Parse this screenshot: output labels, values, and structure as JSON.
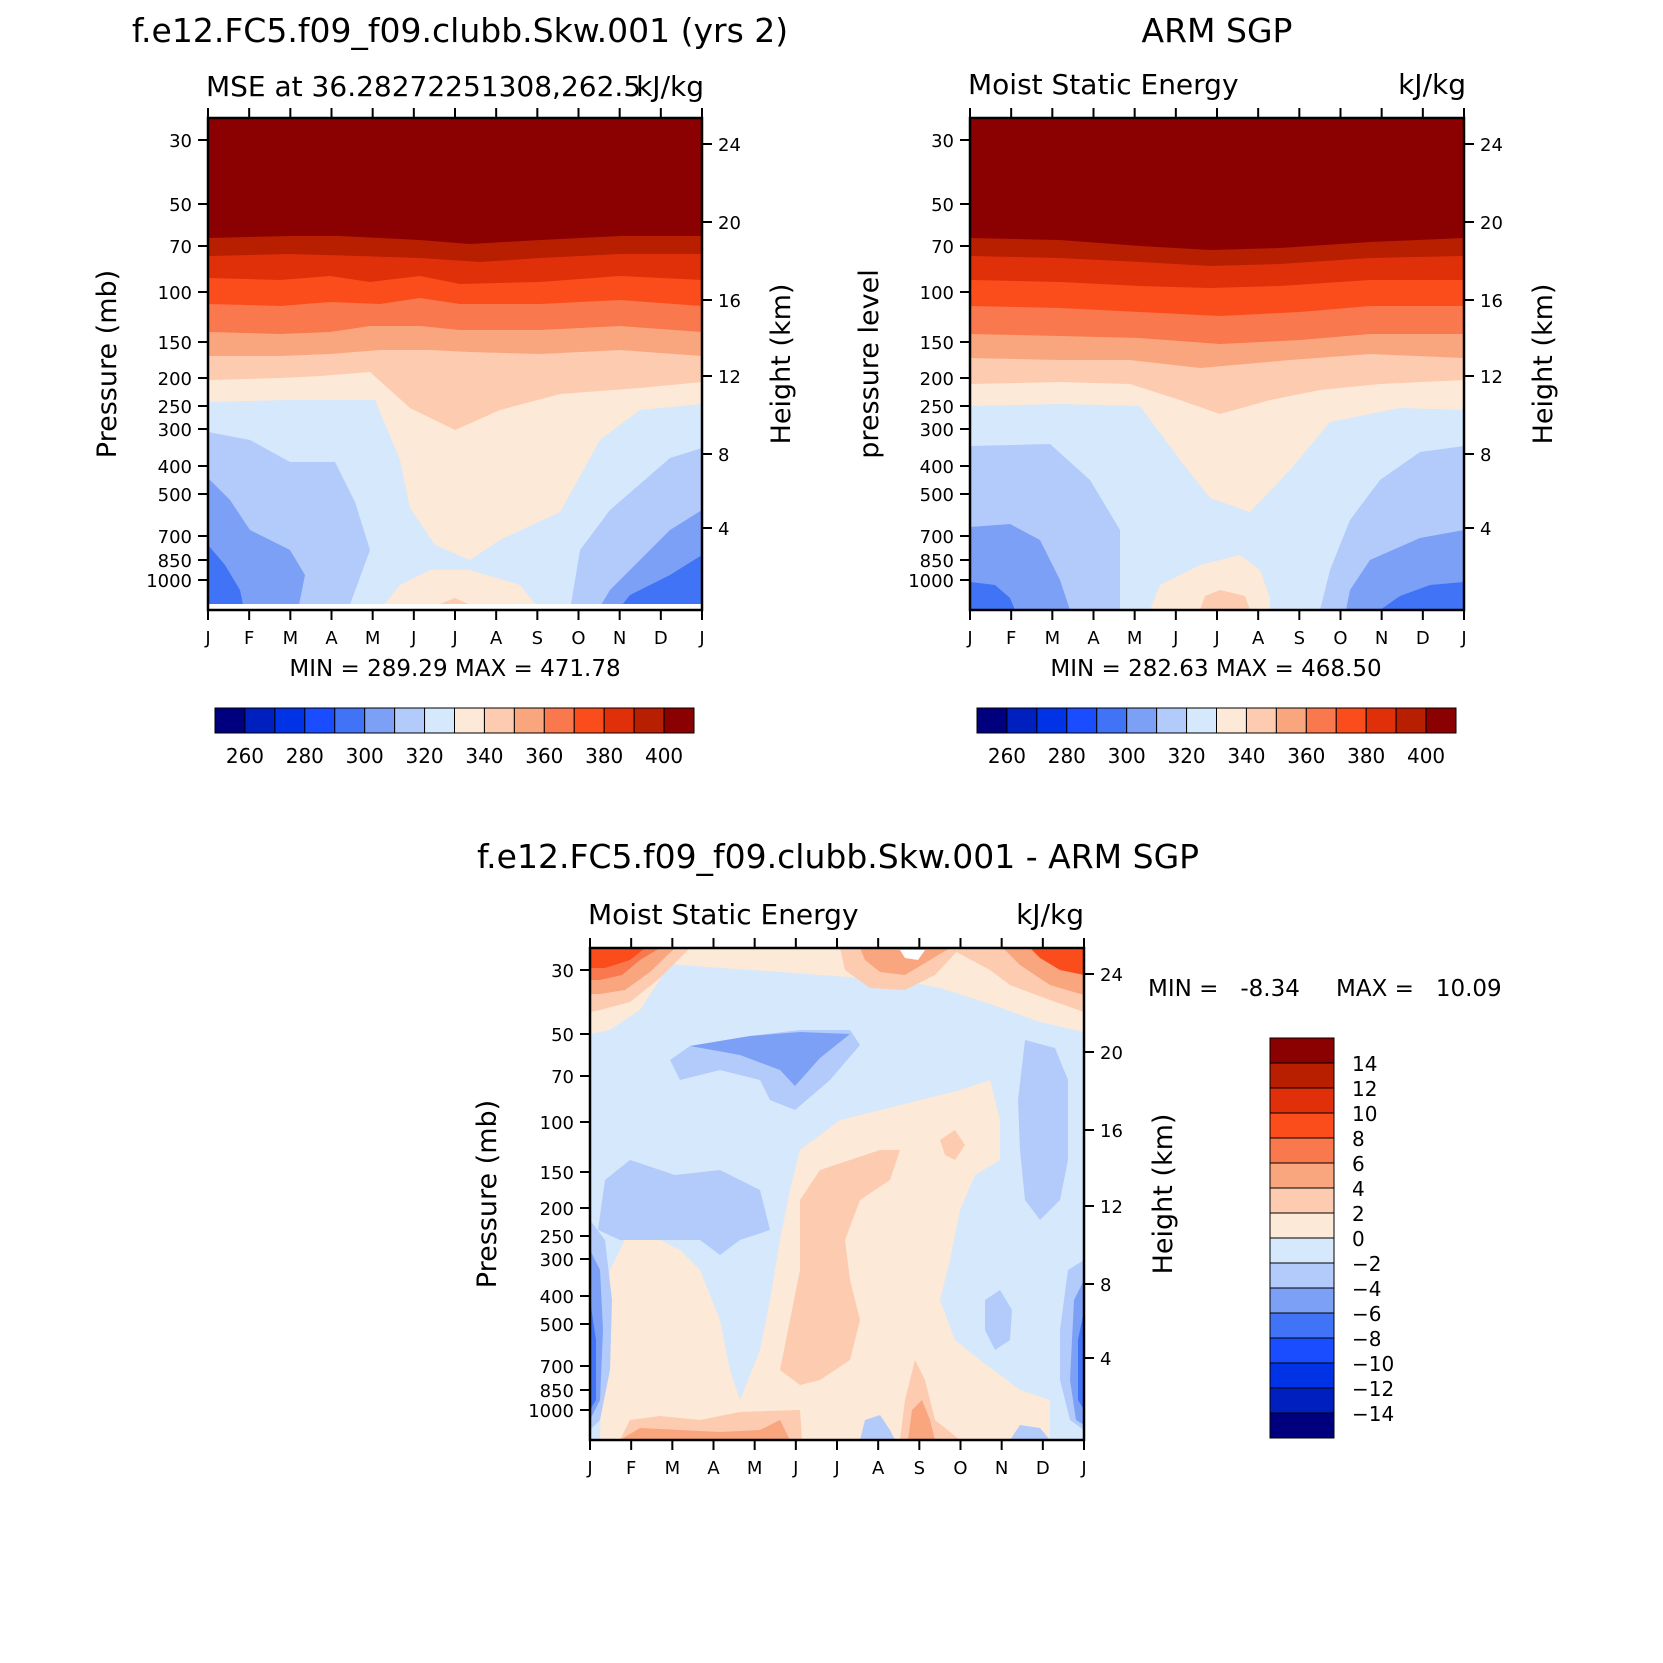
{
  "panel_a": {
    "title": "f.e12.FC5.f09_f09.clubb.Skw.001 (yrs 2)",
    "subtitle_left": "MSE at 36.28272251308,262.5",
    "subtitle_right": "kJ/kg",
    "ylabel": "Pressure (mb)",
    "yrlabel": "Height (km)",
    "stats": "MIN = 289.29 MAX = 471.78",
    "colorbar_labels": [
      "260",
      "280",
      "300",
      "320",
      "340",
      "360",
      "380",
      "400"
    ]
  },
  "panel_b": {
    "title": "ARM SGP",
    "subtitle_left": "Moist Static Energy",
    "subtitle_right": "kJ/kg",
    "ylabel": "pressure level",
    "yrlabel": "Height (km)",
    "stats": "MIN = 282.63 MAX = 468.50",
    "colorbar_labels": [
      "260",
      "280",
      "300",
      "320",
      "340",
      "360",
      "380",
      "400"
    ]
  },
  "panel_c": {
    "title": "f.e12.FC5.f09_f09.clubb.Skw.001 - ARM SGP",
    "subtitle_left": "Moist Static Energy",
    "subtitle_right": "kJ/kg",
    "ylabel": "Pressure (mb)",
    "yrlabel": "Height (km)",
    "stats_min": "MIN =   -8.34",
    "stats_max": "MAX =   10.09",
    "colorbar_labels": [
      "14",
      "12",
      "10",
      "8",
      "6",
      "4",
      "2",
      "0",
      "−2",
      "−4",
      "−6",
      "−8",
      "−10",
      "−12",
      "−14"
    ]
  },
  "chart_data": [
    {
      "type": "heatmap",
      "title": "f.e12.FC5.f09_f09.clubb.Skw.001 (yrs 2)",
      "subtitle": "MSE at 36.28272251308,262.5",
      "units": "kJ/kg",
      "xlabel": "",
      "ylabel": "Pressure (mb)",
      "y2label": "Height (km)",
      "x_ticks": [
        "J",
        "F",
        "M",
        "A",
        "M",
        "J",
        "J",
        "A",
        "S",
        "O",
        "N",
        "D",
        "J"
      ],
      "y_ticks": [
        "30",
        "50",
        "70",
        "100",
        "150",
        "200",
        "250",
        "300",
        "400",
        "500",
        "700",
        "850",
        "1000"
      ],
      "y2_ticks": [
        "24",
        "20",
        "16",
        "12",
        "8",
        "4"
      ],
      "min": 289.29,
      "max": 471.78,
      "levels": [
        260,
        270,
        280,
        290,
        300,
        310,
        320,
        330,
        340,
        350,
        360,
        370,
        380,
        390,
        400,
        410
      ]
    },
    {
      "type": "heatmap",
      "title": "ARM SGP",
      "subtitle": "Moist Static Energy",
      "units": "kJ/kg",
      "ylabel": "pressure level",
      "y2label": "Height (km)",
      "x_ticks": [
        "J",
        "F",
        "M",
        "A",
        "M",
        "J",
        "J",
        "A",
        "S",
        "O",
        "N",
        "D",
        "J"
      ],
      "y_ticks": [
        "30",
        "50",
        "70",
        "100",
        "150",
        "200",
        "250",
        "300",
        "400",
        "500",
        "700",
        "850",
        "1000"
      ],
      "y2_ticks": [
        "24",
        "20",
        "16",
        "12",
        "8",
        "4"
      ],
      "min": 282.63,
      "max": 468.5,
      "levels": [
        260,
        270,
        280,
        290,
        300,
        310,
        320,
        330,
        340,
        350,
        360,
        370,
        380,
        390,
        400,
        410
      ]
    },
    {
      "type": "heatmap",
      "title": "f.e12.FC5.f09_f09.clubb.Skw.001 - ARM SGP",
      "subtitle": "Moist Static Energy",
      "units": "kJ/kg",
      "ylabel": "Pressure (mb)",
      "y2label": "Height (km)",
      "x_ticks": [
        "J",
        "F",
        "M",
        "A",
        "M",
        "J",
        "J",
        "A",
        "S",
        "O",
        "N",
        "D",
        "J"
      ],
      "y_ticks": [
        "30",
        "50",
        "70",
        "100",
        "150",
        "200",
        "250",
        "300",
        "400",
        "500",
        "700",
        "850",
        "1000"
      ],
      "y2_ticks": [
        "24",
        "20",
        "16",
        "12",
        "8",
        "4"
      ],
      "min": -8.34,
      "max": 10.09,
      "levels": [
        -14,
        -12,
        -10,
        -8,
        -6,
        -4,
        -2,
        0,
        2,
        4,
        6,
        8,
        10,
        12,
        14
      ]
    }
  ],
  "colors": {
    "scale16": [
      "#00007f",
      "#001fbf",
      "#0033e6",
      "#1a4dff",
      "#4073f5",
      "#7ca0f5",
      "#b3cbfa",
      "#d5e8fc",
      "#fde9d7",
      "#fccbb0",
      "#f9a67e",
      "#f9784d",
      "#fb4d1c",
      "#e0300a",
      "#b81e00",
      "#8b0000"
    ]
  }
}
